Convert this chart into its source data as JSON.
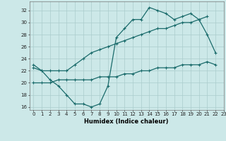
{
  "xlabel": "Humidex (Indice chaleur)",
  "xlim": [
    -0.5,
    23
  ],
  "ylim": [
    15.5,
    33.5
  ],
  "yticks": [
    16,
    18,
    20,
    22,
    24,
    26,
    28,
    30,
    32
  ],
  "xticks": [
    0,
    1,
    2,
    3,
    4,
    5,
    6,
    7,
    8,
    9,
    10,
    11,
    12,
    13,
    14,
    15,
    16,
    17,
    18,
    19,
    20,
    21,
    22,
    23
  ],
  "bg_color": "#cce8e8",
  "grid_color": "#aacccc",
  "line_color": "#1a6b6b",
  "line1_x": [
    0,
    1,
    2,
    3,
    4,
    5,
    6,
    7,
    8,
    9,
    10,
    11,
    12,
    13,
    14,
    15,
    16,
    17,
    18,
    19,
    20,
    21,
    22
  ],
  "line1_y": [
    23,
    22,
    20.5,
    19.5,
    18,
    16.5,
    16.5,
    16,
    16.5,
    19.5,
    27.5,
    29,
    30.5,
    30.5,
    32.5,
    32,
    31.5,
    30.5,
    31,
    31.5,
    30.5,
    28,
    25
  ],
  "line2_x": [
    0,
    1,
    2,
    3,
    4,
    5,
    6,
    7,
    8,
    9,
    10,
    11,
    12,
    13,
    14,
    15,
    16,
    17,
    18,
    19,
    20,
    21,
    22,
    23
  ],
  "line2_y": [
    22.5,
    22,
    22,
    22,
    22,
    23,
    24,
    25,
    25.5,
    26,
    26.5,
    27,
    27.5,
    28,
    28.5,
    29,
    29,
    29.5,
    30,
    30,
    30.5,
    31,
    null,
    null
  ],
  "line3_x": [
    0,
    1,
    2,
    3,
    4,
    5,
    6,
    7,
    8,
    9,
    10,
    11,
    12,
    13,
    14,
    15,
    16,
    17,
    18,
    19,
    20,
    21,
    22,
    23
  ],
  "line3_y": [
    20,
    20,
    20,
    20.5,
    20.5,
    20.5,
    20.5,
    20.5,
    21,
    21,
    21,
    21.5,
    21.5,
    22,
    22,
    22.5,
    22.5,
    22.5,
    23,
    23,
    23,
    23.5,
    23,
    null
  ]
}
